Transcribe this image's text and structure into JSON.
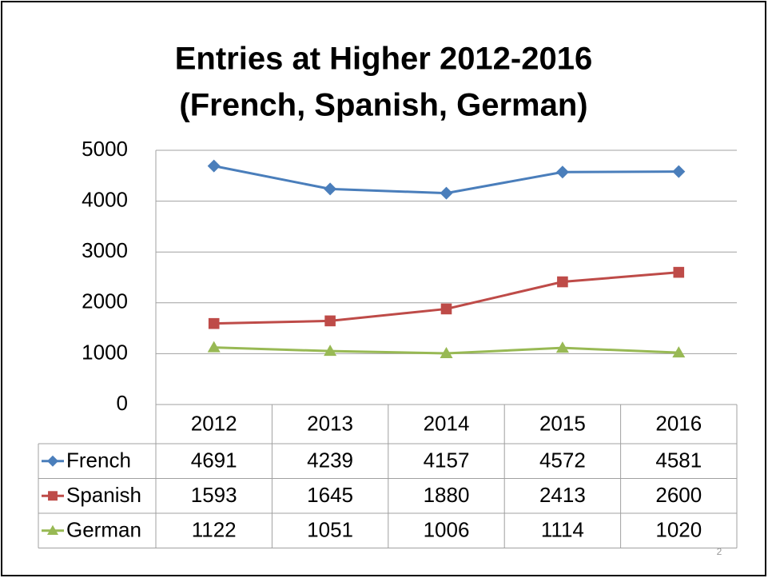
{
  "chart_data": {
    "type": "line",
    "title": [
      "Entries at Higher 2012-2016",
      "(French, Spanish, German)"
    ],
    "categories": [
      "2012",
      "2013",
      "2014",
      "2015",
      "2016"
    ],
    "series": [
      {
        "name": "French",
        "color": "#4a7ebb",
        "marker": "diamond",
        "values": [
          4691,
          4239,
          4157,
          4572,
          4581
        ]
      },
      {
        "name": "Spanish",
        "color": "#be4b48",
        "marker": "square",
        "values": [
          1593,
          1645,
          1880,
          2413,
          2600
        ]
      },
      {
        "name": "German",
        "color": "#98b954",
        "marker": "triangle",
        "values": [
          1122,
          1051,
          1006,
          1114,
          1020
        ]
      }
    ],
    "ylim": [
      0,
      5000
    ],
    "yticks": [
      0,
      1000,
      2000,
      3000,
      4000,
      5000
    ],
    "grid": true,
    "data_table": true
  },
  "page_number": "2"
}
